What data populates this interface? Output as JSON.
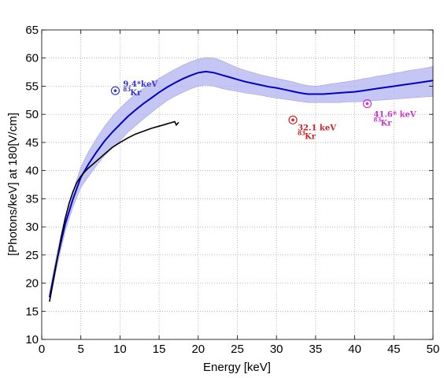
{
  "chart_data": {
    "type": "line",
    "xlabel": "Energy [keV]",
    "ylabel": "[Photons/keV] at 180[V/cm]",
    "xlim": [
      0,
      50
    ],
    "ylim": [
      10,
      65
    ],
    "xticks": [
      0,
      5,
      10,
      15,
      20,
      25,
      30,
      35,
      40,
      45,
      50
    ],
    "yticks": [
      10,
      15,
      20,
      25,
      30,
      35,
      40,
      45,
      50,
      55,
      60,
      65
    ],
    "xtick_labels": [
      "0",
      "5",
      "10",
      "15",
      "20",
      "25",
      "30",
      "35",
      "40",
      "45",
      "50"
    ],
    "ytick_labels": [
      "10",
      "15",
      "20",
      "25",
      "30",
      "35",
      "40",
      "45",
      "50",
      "55",
      "60",
      "65"
    ],
    "grid": true,
    "colors": {
      "model": "#0000cc",
      "band": "#b3b3f2",
      "measured": "#000000",
      "point_9_4": "#3333cc",
      "point_32_1": "#cc2222",
      "point_41_6": "#cc33cc"
    },
    "series": [
      {
        "x": [
          1,
          1.5,
          2,
          2.5,
          3,
          4,
          5,
          6,
          7,
          8,
          9,
          10,
          11,
          12,
          13,
          14,
          15,
          16,
          17,
          18,
          19,
          20,
          21,
          22,
          23,
          24,
          25,
          26,
          27,
          28,
          29,
          30,
          31,
          32,
          33,
          34,
          35,
          36,
          37,
          38,
          39,
          40,
          41,
          42,
          43,
          44,
          45,
          46,
          47,
          48,
          49,
          50
        ],
        "y": [
          17.5,
          21,
          24.5,
          27.5,
          30.5,
          35,
          38.8,
          41.2,
          43.3,
          45.2,
          46.8,
          48.2,
          49.6,
          50.8,
          51.9,
          52.9,
          53.9,
          54.8,
          55.6,
          56.3,
          56.9,
          57.4,
          57.6,
          57.4,
          57,
          56.6,
          56.2,
          55.8,
          55.5,
          55.2,
          54.9,
          54.7,
          54.4,
          54.1,
          53.8,
          53.6,
          53.6,
          53.6,
          53.7,
          53.8,
          53.9,
          54,
          54.2,
          54.4,
          54.6,
          54.8,
          55,
          55.2,
          55.4,
          55.6,
          55.8,
          56
        ],
        "upper": [
          18.2,
          22,
          25.7,
          28.8,
          31.8,
          36.4,
          40.6,
          43.4,
          45.7,
          47.8,
          49.6,
          51.1,
          52.4,
          53.6,
          54.6,
          55.5,
          56.4,
          57.2,
          58,
          58.7,
          59.3,
          59.8,
          60.1,
          60,
          59.5,
          58.9,
          58.3,
          57.8,
          57.4,
          57,
          56.7,
          56.4,
          56.1,
          55.8,
          55.4,
          55.1,
          55,
          55.2,
          55.4,
          55.6,
          55.8,
          56,
          56.3,
          56.5,
          56.8,
          57,
          57.3,
          57.5,
          57.8,
          58,
          58.2,
          58.5
        ],
        "lower": [
          16.8,
          20,
          23.3,
          26.2,
          29.2,
          33.6,
          37,
          39,
          40.9,
          42.6,
          44,
          45.3,
          46.8,
          48,
          49.2,
          50.3,
          51.4,
          52.4,
          53.2,
          53.9,
          54.5,
          55,
          55.2,
          55,
          54.6,
          54.3,
          54.1,
          53.8,
          53.6,
          53.4,
          53.1,
          52.9,
          52.7,
          52.5,
          52.3,
          52.1,
          52.1,
          52.1,
          52.1,
          52.1,
          52.2,
          52.2,
          52.3,
          52.4,
          52.5,
          52.6,
          52.7,
          52.8,
          52.9,
          53,
          53.1,
          53.2
        ]
      },
      {
        "x": [
          1,
          1.5,
          2,
          2.5,
          3,
          3.5,
          4,
          4.5,
          5,
          5.5,
          6,
          7,
          8,
          9,
          10,
          11,
          12,
          13,
          14,
          15,
          15.5,
          16,
          16.5,
          17,
          17.2,
          17.5
        ],
        "y": [
          16.7,
          20.5,
          24.5,
          28.2,
          31.5,
          34.2,
          36.3,
          37.9,
          39,
          39.8,
          40.5,
          41.7,
          42.9,
          44.1,
          45,
          45.8,
          46.5,
          47,
          47.5,
          47.9,
          48.1,
          48.3,
          48.5,
          48.7,
          48.1,
          48.6
        ]
      }
    ],
    "points": [
      {
        "x": 9.4,
        "y": 54.2,
        "label": "9.4*keV",
        "isotope": "Kr",
        "mass": "83"
      },
      {
        "x": 32.1,
        "y": 49.0,
        "label": "32.1 keV",
        "isotope": "Kr",
        "mass": "83"
      },
      {
        "x": 41.6,
        "y": 51.9,
        "label": "41.6* keV",
        "isotope": "Kr",
        "mass": "83"
      }
    ]
  }
}
